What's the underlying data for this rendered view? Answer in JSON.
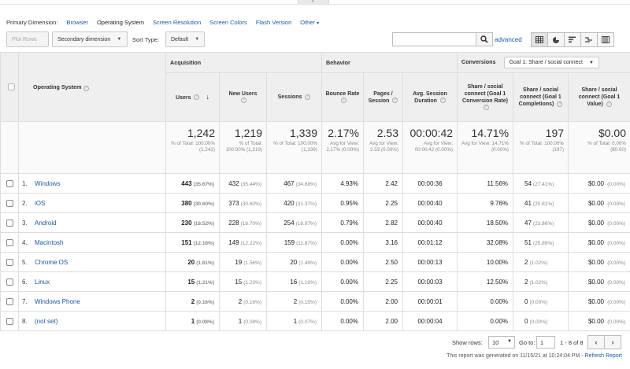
{
  "primary_dimension": {
    "label": "Primary Dimension:",
    "options": [
      "Browser",
      "Operating System",
      "Screen Resolution",
      "Screen Colors",
      "Flash Version"
    ],
    "selected": "Operating System",
    "other": "Other"
  },
  "toolbar": {
    "plot_rows": "Plot Rows",
    "secondary_dimension": "Secondary dimension",
    "sort_type_label": "Sort Type:",
    "sort_type_value": "Default",
    "search_value": "",
    "advanced": "advanced"
  },
  "table": {
    "dimension_header": "Operating System",
    "groups": {
      "acquisition": "Acquisition",
      "behavior": "Behavior",
      "conversions": "Conversions",
      "goal_select": "Goal 1: Share / social connect"
    },
    "columns": {
      "users": "Users",
      "new_users": "New Users",
      "sessions": "Sessions",
      "bounce_rate": "Bounce Rate",
      "pages_session": "Pages / Session",
      "avg_duration": "Avg. Session Duration",
      "conv_rate": "Share / social connect (Goal 1 Conversion Rate)",
      "completions": "Share / social connect (Goal 1 Completions)",
      "value": "Share / social connect (Goal 1 Value)"
    },
    "totals": {
      "users": "1,242",
      "users_sub": "% of Total: 100.00% (1,242)",
      "new_users": "1,219",
      "new_users_sub": "% of Total: 100.00% (1,219)",
      "sessions": "1,339",
      "sessions_sub": "% of Total: 100.00% (1,339)",
      "bounce_rate": "2.17%",
      "bounce_rate_sub": "Avg for View: 2.17% (0.00%)",
      "pages_session": "2.53",
      "pages_session_sub": "Avg for View: 2.53 (0.00%)",
      "avg_duration": "00:00:42",
      "avg_duration_sub": "Avg for View: 00:00:42 (0.00%)",
      "conv_rate": "14.71%",
      "conv_rate_sub": "Avg for View: 14.71% (0.00%)",
      "completions": "197",
      "completions_sub": "% of Total: 100.00% (197)",
      "value": "$0.00",
      "value_sub": "% of Total: 0.00% ($0.00)"
    },
    "rows": [
      {
        "idx": "1.",
        "os": "Windows",
        "users": "443",
        "users_pct": "(35.67%)",
        "new_users": "432",
        "new_users_pct": "(35.44%)",
        "sessions": "467",
        "sessions_pct": "(34.88%)",
        "bounce": "4.93%",
        "pages": "2.42",
        "duration": "00:00:36",
        "conv": "11.56%",
        "comp": "54",
        "comp_pct": "(27.41%)",
        "value": "$0.00",
        "value_pct": "(0.00%)"
      },
      {
        "idx": "2.",
        "os": "iOS",
        "users": "380",
        "users_pct": "(30.60%)",
        "new_users": "373",
        "new_users_pct": "(30.60%)",
        "sessions": "420",
        "sessions_pct": "(31.37%)",
        "bounce": "0.95%",
        "pages": "2.25",
        "duration": "00:00:40",
        "conv": "9.76%",
        "comp": "41",
        "comp_pct": "(20.81%)",
        "value": "$0.00",
        "value_pct": "(0.00%)"
      },
      {
        "idx": "3.",
        "os": "Android",
        "users": "230",
        "users_pct": "(18.52%)",
        "new_users": "228",
        "new_users_pct": "(18.70%)",
        "sessions": "254",
        "sessions_pct": "(18.97%)",
        "bounce": "0.79%",
        "pages": "2.82",
        "duration": "00:00:40",
        "conv": "18.50%",
        "comp": "47",
        "comp_pct": "(23.86%)",
        "value": "$0.00",
        "value_pct": "(0.00%)"
      },
      {
        "idx": "4.",
        "os": "Macintosh",
        "users": "151",
        "users_pct": "(12.16%)",
        "new_users": "149",
        "new_users_pct": "(12.22%)",
        "sessions": "159",
        "sessions_pct": "(11.87%)",
        "bounce": "0.00%",
        "pages": "3.16",
        "duration": "00:01:12",
        "conv": "32.08%",
        "comp": "51",
        "comp_pct": "(25.89%)",
        "value": "$0.00",
        "value_pct": "(0.00%)"
      },
      {
        "idx": "5.",
        "os": "Chrome OS",
        "users": "20",
        "users_pct": "(1.61%)",
        "new_users": "19",
        "new_users_pct": "(1.56%)",
        "sessions": "20",
        "sessions_pct": "(1.49%)",
        "bounce": "0.00%",
        "pages": "2.50",
        "duration": "00:00:13",
        "conv": "10.00%",
        "comp": "2",
        "comp_pct": "(1.02%)",
        "value": "$0.00",
        "value_pct": "(0.00%)"
      },
      {
        "idx": "6.",
        "os": "Linux",
        "users": "15",
        "users_pct": "(1.21%)",
        "new_users": "15",
        "new_users_pct": "(1.23%)",
        "sessions": "16",
        "sessions_pct": "(1.19%)",
        "bounce": "0.00%",
        "pages": "2.25",
        "duration": "00:00:03",
        "conv": "12.50%",
        "comp": "2",
        "comp_pct": "(1.02%)",
        "value": "$0.00",
        "value_pct": "(0.00%)"
      },
      {
        "idx": "7.",
        "os": "Windows Phone",
        "users": "2",
        "users_pct": "(0.16%)",
        "new_users": "2",
        "new_users_pct": "(0.16%)",
        "sessions": "2",
        "sessions_pct": "(0.15%)",
        "bounce": "0.00%",
        "pages": "2.00",
        "duration": "00:00:01",
        "conv": "0.00%",
        "comp": "0",
        "comp_pct": "(0.00%)",
        "value": "$0.00",
        "value_pct": "(0.00%)"
      },
      {
        "idx": "8.",
        "os": "(not set)",
        "users": "1",
        "users_pct": "(0.08%)",
        "new_users": "1",
        "new_users_pct": "(0.08%)",
        "sessions": "1",
        "sessions_pct": "(0.07%)",
        "bounce": "0.00%",
        "pages": "2.00",
        "duration": "00:00:04",
        "conv": "0.00%",
        "comp": "0",
        "comp_pct": "(0.00%)",
        "value": "$0.00",
        "value_pct": "(0.00%)"
      }
    ]
  },
  "pagination": {
    "show_rows_label": "Show rows:",
    "show_rows_value": "10",
    "goto_label": "Go to:",
    "goto_value": "1",
    "range": "1 - 8 of 8"
  },
  "footer": {
    "generated": "This report was generated on 11/15/21 at 10:24:04 PM -",
    "refresh": "Refresh Report"
  },
  "icons": {
    "search": "search-icon",
    "sort_desc": "arrow-down-icon",
    "prev": "chevron-left-icon",
    "next": "chevron-right-icon"
  }
}
